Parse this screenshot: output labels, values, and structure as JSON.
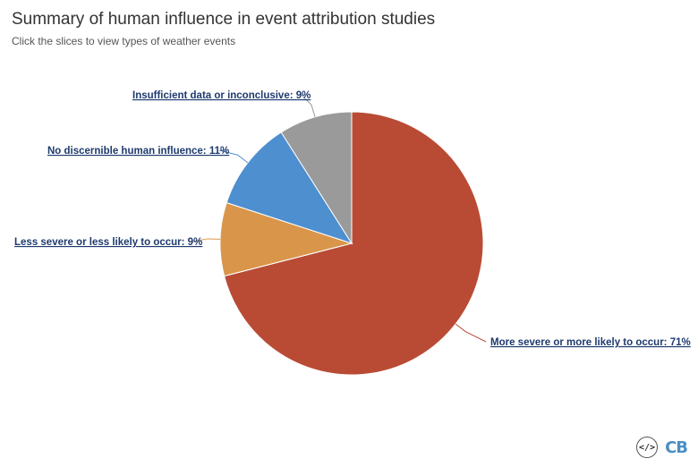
{
  "header": {
    "title": "Summary of human influence in event attribution studies",
    "subtitle": "Click the slices to view types of weather events"
  },
  "chart_data": {
    "type": "pie",
    "slices": [
      {
        "label": "More severe or more likely to occur: 71%",
        "value": 71,
        "color": "#b94b35"
      },
      {
        "label": "Less severe or less likely to occur: 9%",
        "value": 9,
        "color": "#d9954a"
      },
      {
        "label": "No discernible human influence: 11%",
        "value": 11,
        "color": "#4d8fcf"
      },
      {
        "label": "Insufficient data or inconclusive: 9%",
        "value": 9,
        "color": "#9a9a9a"
      }
    ]
  },
  "footer": {
    "embed_icon": "</>",
    "logo": "CB"
  }
}
